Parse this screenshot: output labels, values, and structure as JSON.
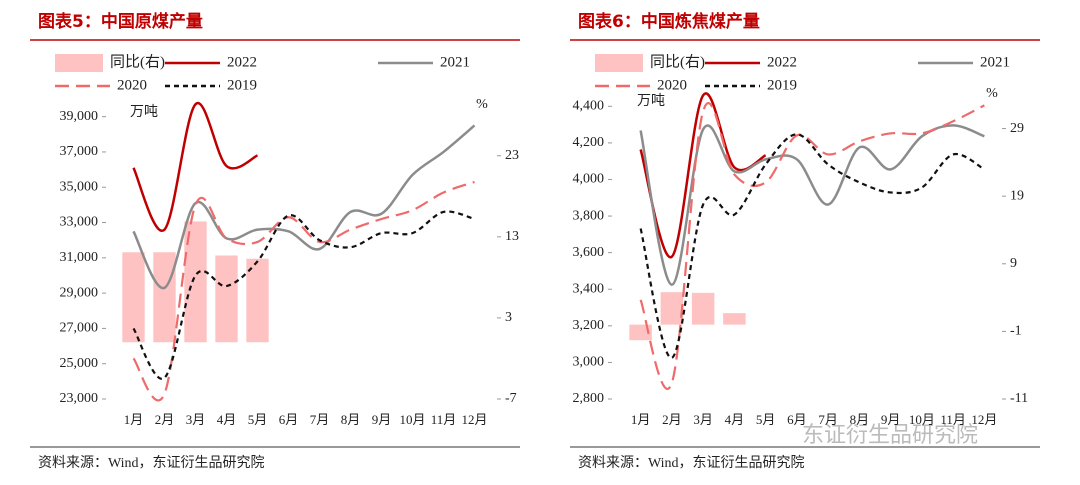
{
  "chart_data": [
    {
      "type": "combo",
      "title": "图表5：中国原煤产量",
      "unit_left": "万吨",
      "unit_right": "%",
      "source": "资料来源：Wind，东证衍生品研究院",
      "categories": [
        "1月",
        "2月",
        "3月",
        "4月",
        "5月",
        "6月",
        "7月",
        "8月",
        "9月",
        "10月",
        "11月",
        "12月"
      ],
      "ylim": [
        23000,
        40000
      ],
      "yticks": [
        {
          "value": 23000,
          "label": "23,000"
        },
        {
          "value": 25000,
          "label": "25,000"
        },
        {
          "value": 27000,
          "label": "27,000"
        },
        {
          "value": 29000,
          "label": "29,000"
        },
        {
          "value": 31000,
          "label": "31,000"
        },
        {
          "value": 33000,
          "label": "33,000"
        },
        {
          "value": 35000,
          "label": "35,000"
        },
        {
          "value": 37000,
          "label": "37,000"
        },
        {
          "value": 39000,
          "label": "39,000"
        }
      ],
      "y2lim": [
        -7,
        30
      ],
      "y2ticks": [
        -7,
        3,
        13,
        23
      ],
      "series": [
        {
          "name": "同比(右)",
          "type": "bar",
          "axis": "y2",
          "color": "#ffc2c2",
          "values": [
            11.1,
            11.1,
            14.9,
            10.7,
            10.3,
            null,
            null,
            null,
            null,
            null,
            null,
            null
          ]
        },
        {
          "name": "2022",
          "type": "line",
          "color": "#c00000",
          "dash": false,
          "values": [
            36100,
            32600,
            39700,
            36200,
            36800,
            null,
            null,
            null,
            null,
            null,
            null,
            null
          ]
        },
        {
          "name": "2021",
          "type": "line",
          "color": "#8c8c8c",
          "dash": false,
          "values": [
            32500,
            29300,
            34100,
            32100,
            32600,
            32500,
            31500,
            33600,
            33500,
            35700,
            37000,
            38500
          ]
        },
        {
          "name": "2020",
          "type": "line",
          "color": "#f06a6a",
          "dash": true,
          "values": [
            25300,
            23300,
            34000,
            32100,
            31900,
            33300,
            31900,
            32600,
            33200,
            33700,
            34700,
            35300
          ]
        },
        {
          "name": "2019",
          "type": "line",
          "color": "#111111",
          "dash": true,
          "values": [
            27000,
            24200,
            30000,
            29400,
            30800,
            33400,
            32000,
            31600,
            32400,
            32400,
            33600,
            33200
          ]
        }
      ]
    },
    {
      "type": "combo",
      "title": "图表6：中国炼焦煤产量",
      "unit_left": "万吨",
      "unit_right": "%",
      "source": "资料来源：Wind，东证衍生品研究院",
      "categories": [
        "1月",
        "2月",
        "3月",
        "4月",
        "5月",
        "6月",
        "7月",
        "8月",
        "9月",
        "10月",
        "11月",
        "12月"
      ],
      "ylim": [
        2800,
        4500
      ],
      "yticks": [
        {
          "value": 2800,
          "label": "2,800"
        },
        {
          "value": 3000,
          "label": "3,000"
        },
        {
          "value": 3200,
          "label": "3,200"
        },
        {
          "value": 3400,
          "label": "3,400"
        },
        {
          "value": 3600,
          "label": "3,600"
        },
        {
          "value": 3800,
          "label": "3,800"
        },
        {
          "value": 4000,
          "label": "4,000"
        },
        {
          "value": 4200,
          "label": "4,200"
        },
        {
          "value": 4400,
          "label": "4,400"
        }
      ],
      "y2lim": [
        -11,
        35
      ],
      "y2ticks": [
        -11,
        -1,
        9,
        19,
        29
      ],
      "series": [
        {
          "name": "同比(右)",
          "type": "bar",
          "axis": "y2",
          "color": "#ffc2c2",
          "values": [
            -2.3,
            4.8,
            4.7,
            1.7,
            null,
            null,
            null,
            null,
            null,
            null,
            null,
            null
          ]
        },
        {
          "name": "2022",
          "type": "line",
          "color": "#c00000",
          "dash": false,
          "values": [
            4164,
            3578,
            4460,
            4066,
            4132,
            null,
            null,
            null,
            null,
            null,
            null,
            null
          ]
        },
        {
          "name": "2021",
          "type": "line",
          "color": "#8c8c8c",
          "dash": false,
          "values": [
            4268,
            3425,
            4274,
            4044,
            4110,
            4110,
            3863,
            4175,
            4055,
            4236,
            4296,
            4236
          ]
        },
        {
          "name": "2020",
          "type": "line",
          "color": "#f06a6a",
          "dash": true,
          "values": [
            3342,
            2888,
            4373,
            4027,
            3984,
            4241,
            4137,
            4208,
            4252,
            4252,
            4318,
            4405
          ]
        },
        {
          "name": "2019",
          "type": "line",
          "color": "#111111",
          "dash": true,
          "values": [
            3732,
            3025,
            3863,
            3808,
            4082,
            4247,
            4082,
            3984,
            3929,
            3956,
            4137,
            4055
          ]
        }
      ]
    }
  ],
  "watermark": "东证衍生品研究院"
}
